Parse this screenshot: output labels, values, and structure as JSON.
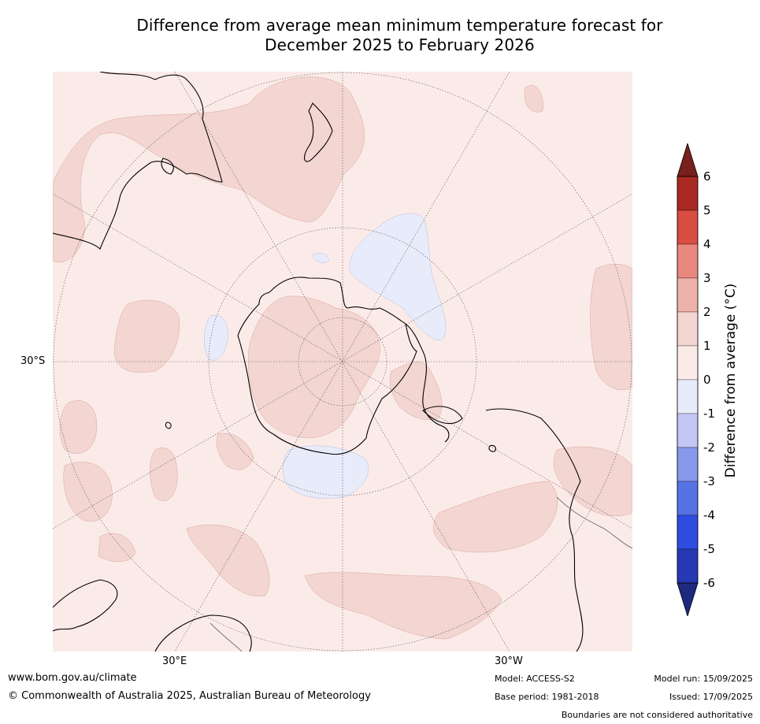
{
  "title": {
    "line1": "Difference from average mean minimum temperature forecast for",
    "line2": "December 2025 to February 2026"
  },
  "map": {
    "projection": "south-polar-stereographic",
    "lat_label": "30°S",
    "lon_labels": [
      "30°E",
      "30°W"
    ],
    "colors": {
      "background": "#fbebe8",
      "anomaly_0_1": "#fbebe8",
      "anomaly_1_2": "#f3d5d1",
      "anomaly_-1_0": "#e8ebfa",
      "coastline": "#000000",
      "graticule": "#555555"
    }
  },
  "colorbar": {
    "label": "Difference from average (°C)",
    "ticks": [
      "6",
      "5",
      "4",
      "3",
      "2",
      "1",
      "0",
      "-1",
      "-2",
      "-3",
      "-4",
      "-5",
      "-6"
    ],
    "bands": [
      {
        "range": "5 to 6",
        "color": "#a92a22"
      },
      {
        "range": "4 to 5",
        "color": "#d94c41"
      },
      {
        "range": "3 to 4",
        "color": "#e8887f"
      },
      {
        "range": "2 to 3",
        "color": "#efb2aa"
      },
      {
        "range": "1 to 2",
        "color": "#f3d5d1"
      },
      {
        "range": "0 to 1",
        "color": "#fbebe8"
      },
      {
        "range": "-1 to 0",
        "color": "#e8ebfa"
      },
      {
        "range": "-2 to -1",
        "color": "#c1c6f2"
      },
      {
        "range": "-3 to -2",
        "color": "#8898ea"
      },
      {
        "range": "-4 to -3",
        "color": "#5672e3"
      },
      {
        "range": "-5 to -4",
        "color": "#2d4de0"
      },
      {
        "range": "-6 to -5",
        "color": "#2639b3"
      }
    ],
    "over_color": "#78201c",
    "under_color": "#1e2a80"
  },
  "footer": {
    "website": "www.bom.gov.au/climate",
    "copyright": "© Commonwealth of Australia 2025, Australian Bureau of Meteorology",
    "model": "Model: ACCESS-S2",
    "base_period": "Base period: 1981-2018",
    "model_run": "Model run: 15/09/2025",
    "issued": "Issued: 17/09/2025",
    "disclaimer": "Boundaries are not considered authoritative"
  }
}
